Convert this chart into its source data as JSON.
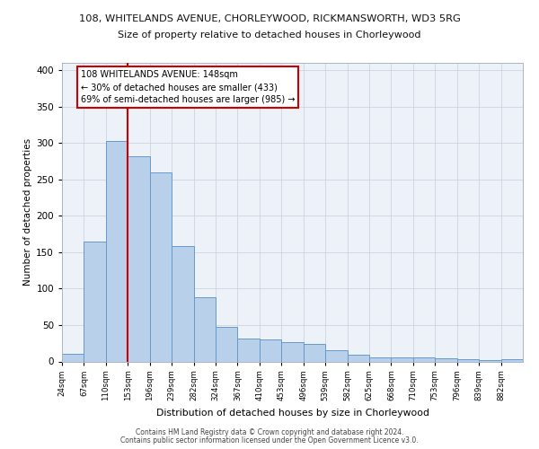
{
  "title_top": "108, WHITELANDS AVENUE, CHORLEYWOOD, RICKMANSWORTH, WD3 5RG",
  "title_sub": "Size of property relative to detached houses in Chorleywood",
  "xlabel": "Distribution of detached houses by size in Chorleywood",
  "ylabel": "Number of detached properties",
  "categories": [
    "24sqm",
    "67sqm",
    "110sqm",
    "153sqm",
    "196sqm",
    "239sqm",
    "282sqm",
    "324sqm",
    "367sqm",
    "410sqm",
    "453sqm",
    "496sqm",
    "539sqm",
    "582sqm",
    "625sqm",
    "668sqm",
    "710sqm",
    "753sqm",
    "796sqm",
    "839sqm",
    "882sqm"
  ],
  "values": [
    10,
    165,
    303,
    282,
    259,
    159,
    88,
    48,
    31,
    30,
    27,
    24,
    15,
    9,
    6,
    5,
    5,
    4,
    3,
    2,
    3
  ],
  "bar_color": "#b8d0ea",
  "bar_edge_color": "#6699cc",
  "vline_x_index": 3,
  "vline_color": "#cc0000",
  "annotation_title": "108 WHITELANDS AVENUE: 148sqm",
  "annotation_line1": "← 30% of detached houses are smaller (433)",
  "annotation_line2": "69% of semi-detached houses are larger (985) →",
  "annotation_box_color": "#ffffff",
  "annotation_box_edge": "#cc0000",
  "ylim": [
    0,
    410
  ],
  "yticks": [
    0,
    50,
    100,
    150,
    200,
    250,
    300,
    350,
    400
  ],
  "footer1": "Contains HM Land Registry data © Crown copyright and database right 2024.",
  "footer2": "Contains public sector information licensed under the Open Government Licence v3.0.",
  "bg_color": "#edf2f9"
}
